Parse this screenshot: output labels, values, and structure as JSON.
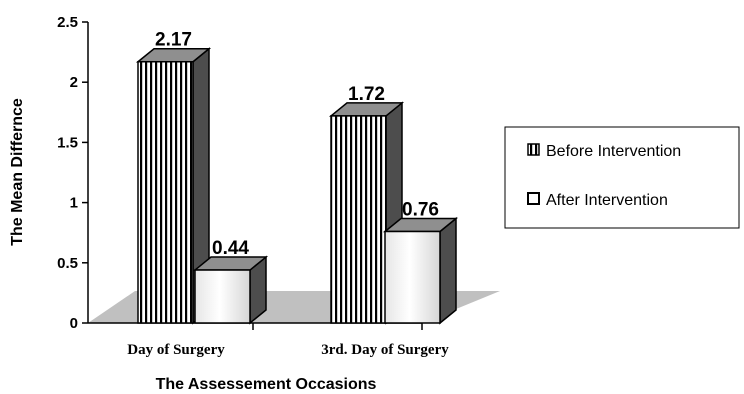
{
  "chart_data": {
    "type": "bar",
    "categories": [
      "Day of Surgery",
      "3rd. Day of Surgery"
    ],
    "series": [
      {
        "name": "Before Intervention",
        "values": [
          2.17,
          1.72
        ],
        "value_labels": [
          "2.17",
          "1.72"
        ],
        "fill": "vertical-stripes"
      },
      {
        "name": "After Intervention",
        "values": [
          0.44,
          0.76
        ],
        "value_labels": [
          "0.44",
          "0.76"
        ],
        "fill": "light-gradient"
      }
    ],
    "y_ticks": [
      "0",
      "0.5",
      "1",
      "1.5",
      "2",
      "2.5"
    ],
    "xlabel": "The Assessement Occasions",
    "ylabel": "The Mean Differnce",
    "ylim": [
      0,
      2.5
    ],
    "style": "3d-bar",
    "grid": false,
    "legend_position": "right",
    "colors": {
      "floor": "#c0c0c0",
      "side": "#4d4d4d",
      "top": "#8f8f8f",
      "stripe": "#000000",
      "outline": "#000000"
    }
  }
}
